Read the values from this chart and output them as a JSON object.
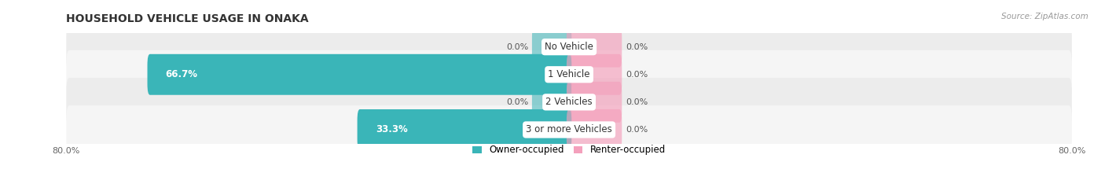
{
  "title": "HOUSEHOLD VEHICLE USAGE IN ONAKA",
  "source": "Source: ZipAtlas.com",
  "categories": [
    "No Vehicle",
    "1 Vehicle",
    "2 Vehicles",
    "3 or more Vehicles"
  ],
  "owner_values": [
    0.0,
    66.7,
    0.0,
    33.3
  ],
  "renter_values": [
    0.0,
    0.0,
    0.0,
    0.0
  ],
  "owner_color": "#3ab5b8",
  "renter_color": "#f4a0bc",
  "row_colors": [
    "#ececec",
    "#f5f5f5",
    "#ececec",
    "#f5f5f5"
  ],
  "x_min": -80.0,
  "x_max": 80.0,
  "stub_size": 5.5,
  "renter_stub_size": 8.0,
  "figsize": [
    14.06,
    2.34
  ],
  "dpi": 100
}
